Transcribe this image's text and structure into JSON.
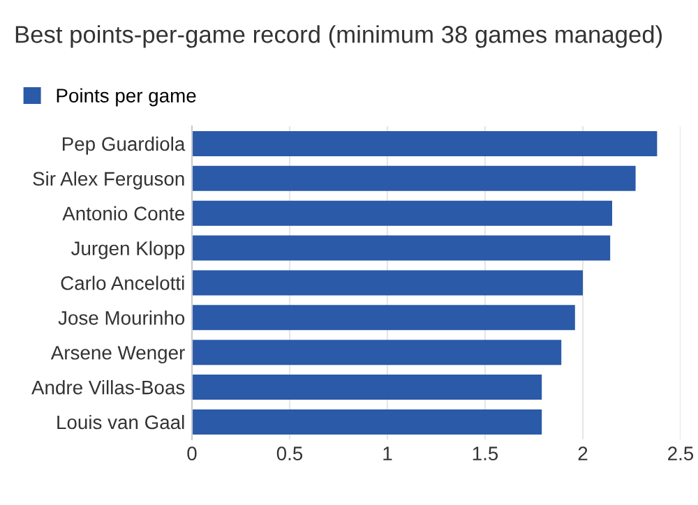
{
  "chart_data": {
    "type": "bar",
    "orientation": "horizontal",
    "title": "Best points-per-game record (minimum 38 games managed)",
    "categories": [
      "Pep Guardiola",
      "Sir Alex Ferguson",
      "Antonio Conte",
      "Jurgen Klopp",
      "Carlo Ancelotti",
      "Jose Mourinho",
      "Arsene Wenger",
      "Andre Villas-Boas",
      "Louis van Gaal"
    ],
    "series": [
      {
        "name": "Points per game",
        "color": "#2a5aa8",
        "values": [
          2.38,
          2.27,
          2.15,
          2.14,
          2.0,
          1.96,
          1.89,
          1.79,
          1.79
        ]
      }
    ],
    "xlim": [
      0,
      2.5
    ],
    "xticks": [
      0,
      0.5,
      1,
      1.5,
      2,
      2.5
    ],
    "grid": "x",
    "legend": "top left"
  }
}
